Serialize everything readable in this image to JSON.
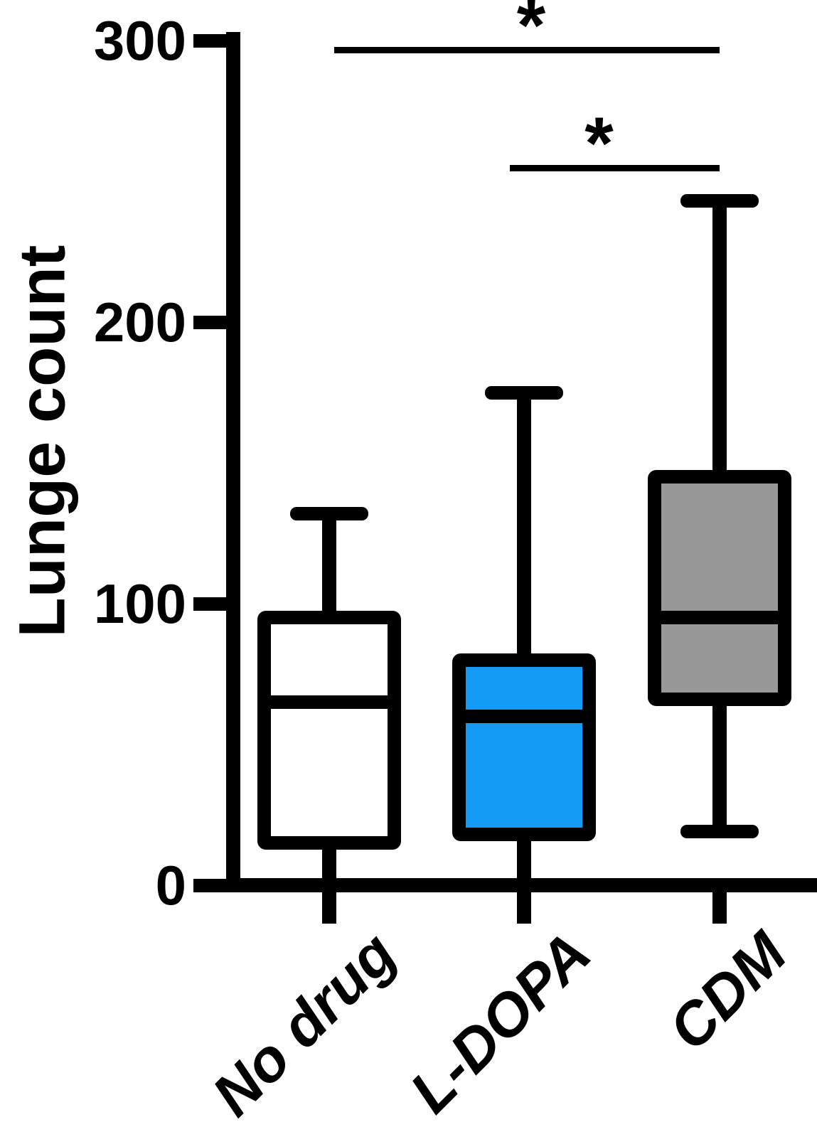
{
  "chart_data": {
    "type": "box",
    "title": "",
    "ylabel": "Lunge count",
    "xlabel": "",
    "ylim": [
      0,
      300
    ],
    "yticks": [
      0,
      100,
      200,
      300
    ],
    "grid": false,
    "legend": false,
    "categories": [
      "No drug",
      "L-DOPA",
      "CDM"
    ],
    "series": [
      {
        "category": "No drug",
        "min": 0,
        "q1": 15,
        "median": 65,
        "q3": 95,
        "max": 132,
        "fill": "#FFFFFF"
      },
      {
        "category": "L-DOPA",
        "min": 0,
        "q1": 18,
        "median": 60,
        "q3": 80,
        "max": 175,
        "fill": "#149BF6"
      },
      {
        "category": "CDM",
        "min": 19,
        "q1": 66,
        "median": 95,
        "q3": 145,
        "max": 243,
        "fill": "#989898"
      }
    ],
    "annotations": {
      "significance": [
        {
          "from": "No drug",
          "to": "CDM",
          "label": "*"
        },
        {
          "from": "L-DOPA",
          "to": "CDM",
          "label": "*"
        }
      ]
    },
    "colors": {
      "axis": "#000000",
      "box_outline": "#000000",
      "blue_fill": "#149BF6",
      "gray_fill": "#989898",
      "white_fill": "#FFFFFF"
    }
  }
}
